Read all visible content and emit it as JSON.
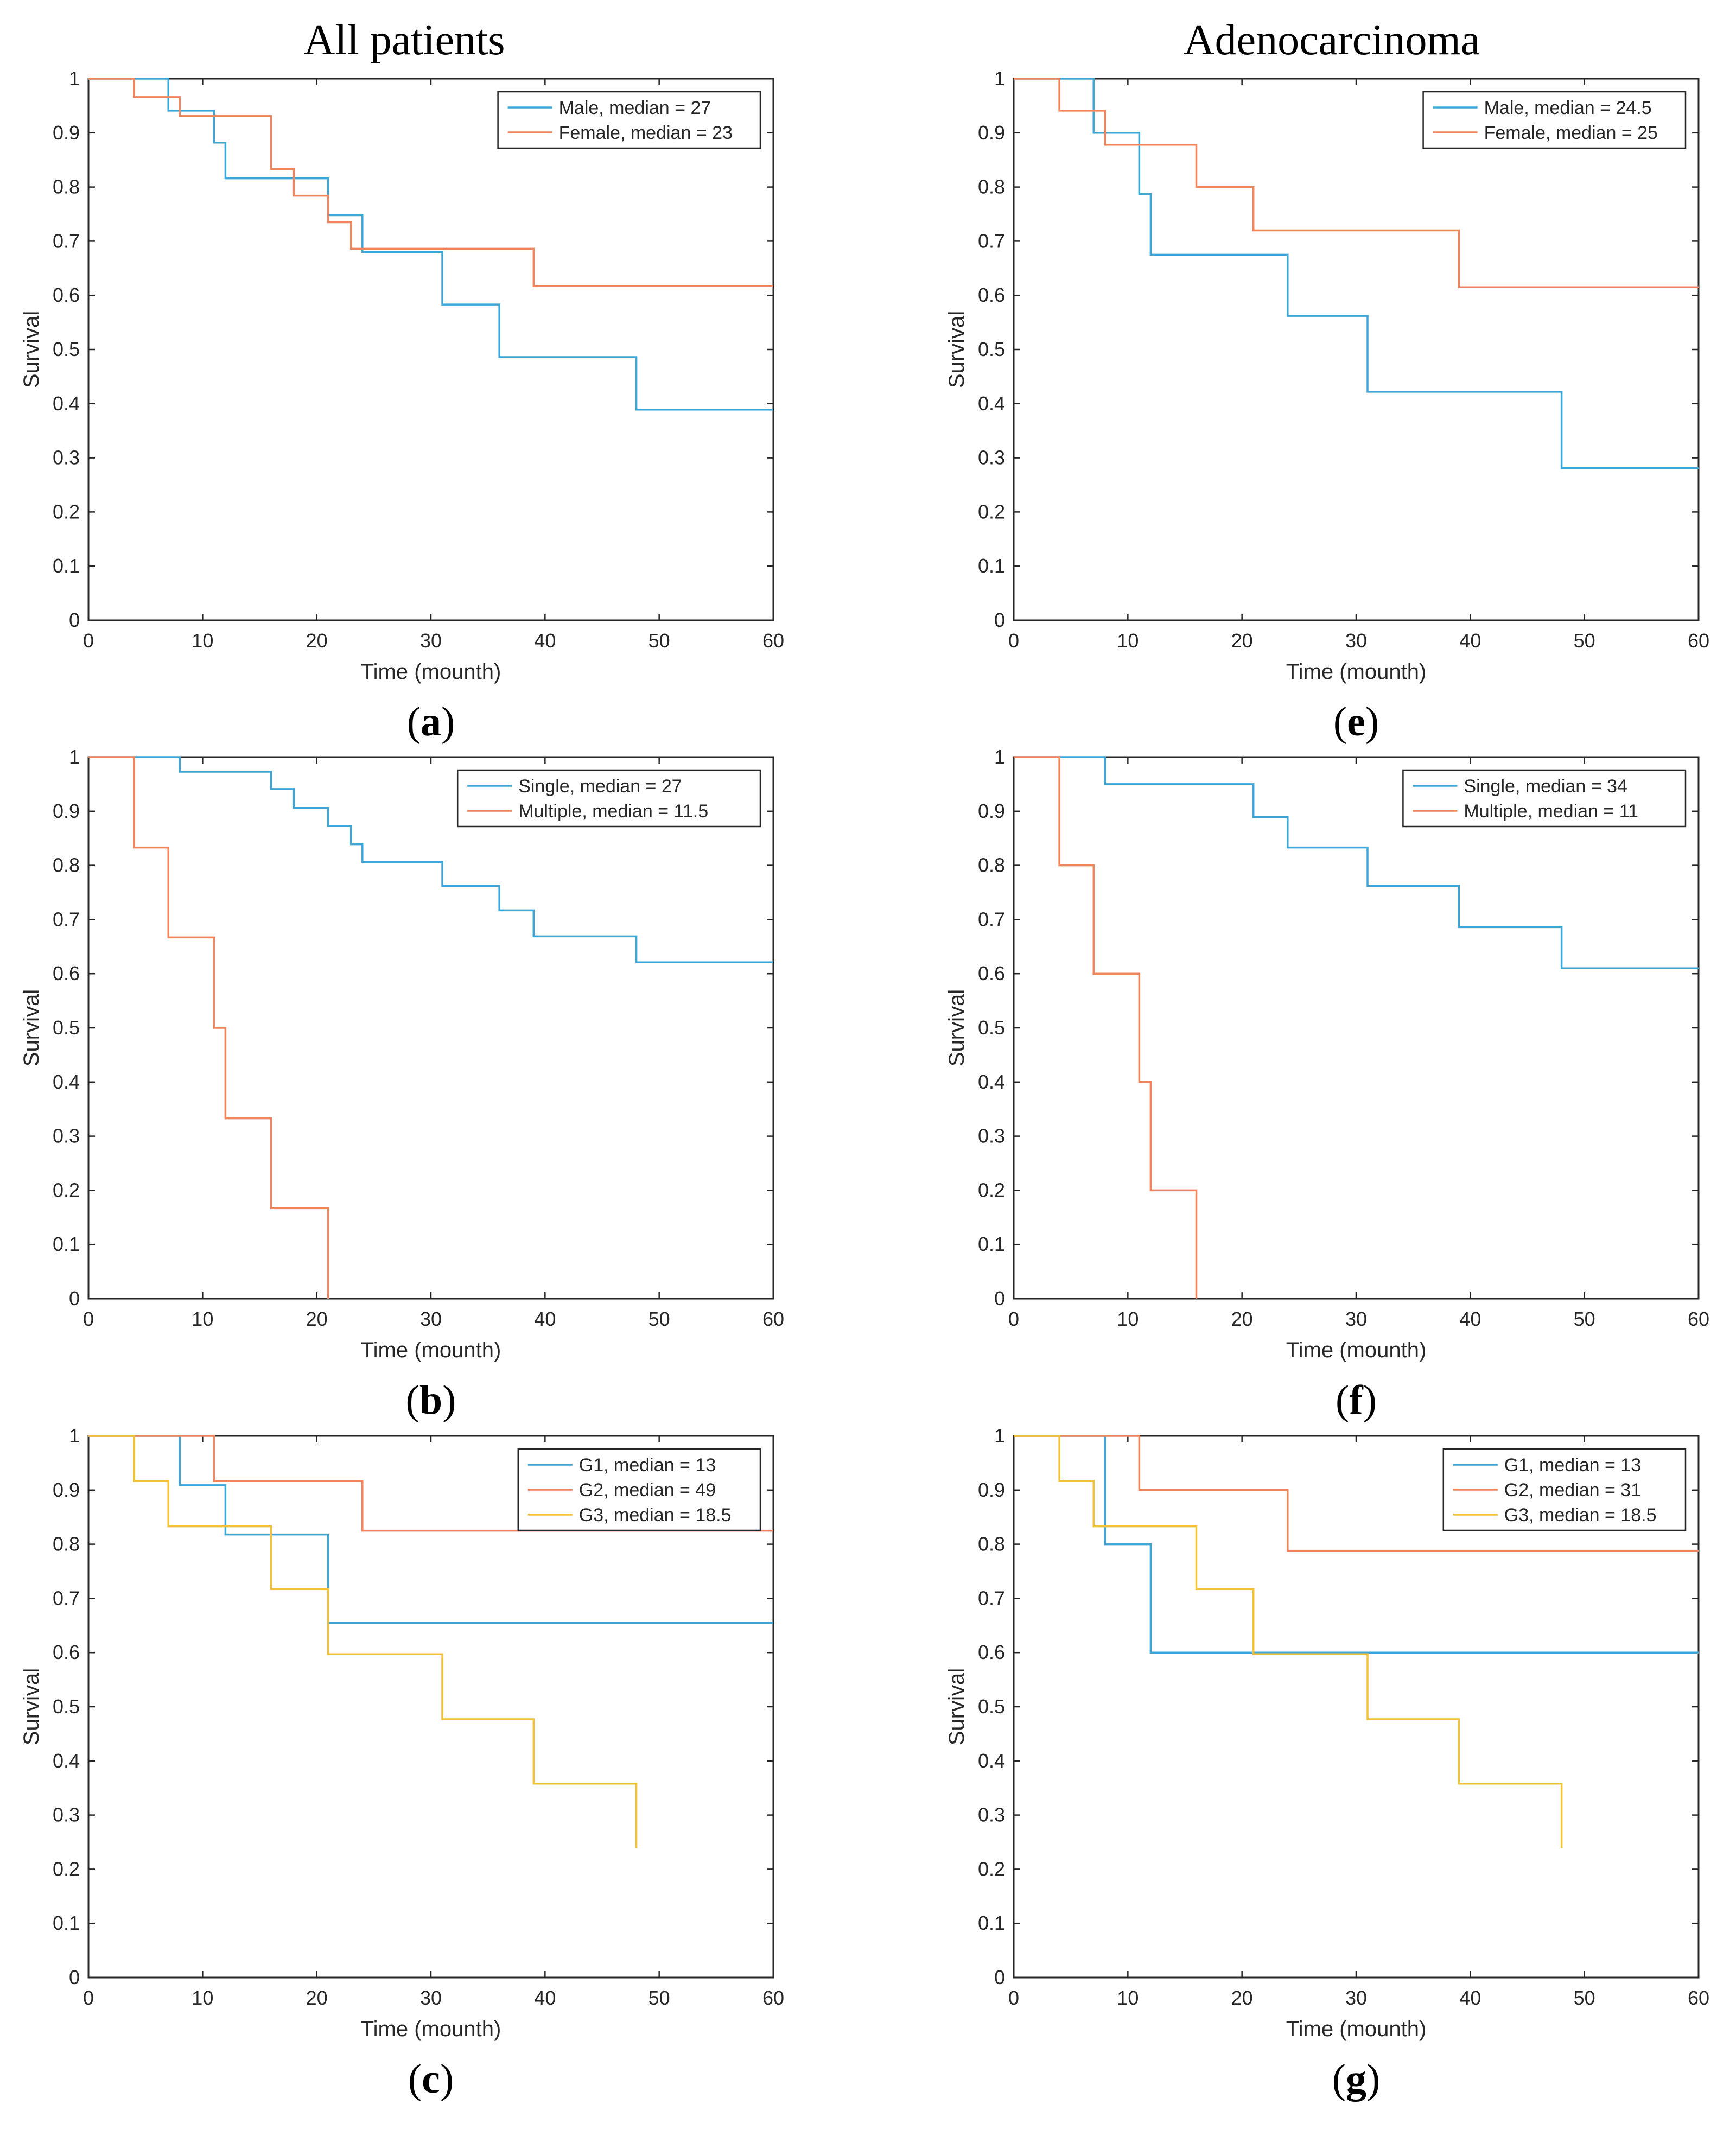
{
  "columns": {
    "left_title": "All patients",
    "right_title": "Adenocarcinoma"
  },
  "colors": {
    "blue": "#3ea6d6",
    "orange": "#f0845c",
    "yellow": "#f2c13a"
  },
  "chart_data": [
    {
      "id": "a",
      "type": "line",
      "step": true,
      "label": "a",
      "xlabel": "Time (mounth)",
      "ylabel": "Survival",
      "xlim": [
        0,
        60
      ],
      "ylim": [
        0,
        1
      ],
      "xticks": [
        "0",
        "10",
        "20",
        "30",
        "40",
        "50",
        "60"
      ],
      "yticks": [
        "0",
        "0.1",
        "0.2",
        "0.3",
        "0.4",
        "0.5",
        "0.6",
        "0.7",
        "0.8",
        "0.9",
        "1"
      ],
      "legend_position": "top-right",
      "series": [
        {
          "name": "Male, median = 27",
          "color": "blue",
          "x": [
            7,
            11,
            12,
            21,
            24,
            31,
            36,
            48,
            60
          ],
          "y": [
            0.941,
            0.882,
            0.816,
            0.748,
            0.68,
            0.583,
            0.486,
            0.389,
            0.389
          ]
        },
        {
          "name": "Female, median = 23",
          "color": "orange",
          "x": [
            4,
            8,
            16,
            18,
            21,
            23,
            39,
            60
          ],
          "y": [
            0.966,
            0.931,
            0.833,
            0.784,
            0.735,
            0.686,
            0.617,
            0.617
          ]
        }
      ]
    },
    {
      "id": "e",
      "type": "line",
      "step": true,
      "label": "e",
      "xlabel": "Time (mounth)",
      "ylabel": "Survival",
      "xlim": [
        0,
        60
      ],
      "ylim": [
        0,
        1
      ],
      "xticks": [
        "0",
        "10",
        "20",
        "30",
        "40",
        "50",
        "60"
      ],
      "yticks": [
        "0",
        "0.1",
        "0.2",
        "0.3",
        "0.4",
        "0.5",
        "0.6",
        "0.7",
        "0.8",
        "0.9",
        "1"
      ],
      "legend_position": "top-right",
      "series": [
        {
          "name": "Male, median = 24.5",
          "color": "blue",
          "x": [
            7,
            11,
            12,
            24,
            31,
            48,
            60
          ],
          "y": [
            0.9,
            0.787,
            0.675,
            0.562,
            0.422,
            0.281,
            0.281
          ]
        },
        {
          "name": "Female, median = 25",
          "color": "orange",
          "x": [
            4,
            8,
            16,
            21,
            39,
            60
          ],
          "y": [
            0.941,
            0.878,
            0.8,
            0.72,
            0.615,
            0.615
          ]
        }
      ]
    },
    {
      "id": "b",
      "type": "line",
      "step": true,
      "label": "b",
      "xlabel": "Time (mounth)",
      "ylabel": "Survival",
      "xlim": [
        0,
        60
      ],
      "ylim": [
        0,
        1
      ],
      "xticks": [
        "0",
        "10",
        "20",
        "30",
        "40",
        "50",
        "60"
      ],
      "yticks": [
        "0",
        "0.1",
        "0.2",
        "0.3",
        "0.4",
        "0.5",
        "0.6",
        "0.7",
        "0.8",
        "0.9",
        "1"
      ],
      "legend_position": "top-right",
      "series": [
        {
          "name": "Single, median = 27",
          "color": "blue",
          "x": [
            8,
            16,
            18,
            21,
            23,
            24,
            31,
            36,
            39,
            48,
            60
          ],
          "y": [
            0.973,
            0.941,
            0.906,
            0.873,
            0.839,
            0.806,
            0.762,
            0.717,
            0.669,
            0.621,
            0.621
          ]
        },
        {
          "name": "Multiple, median = 11.5",
          "color": "orange",
          "x": [
            4,
            7,
            11,
            12,
            16,
            21
          ],
          "y": [
            0.833,
            0.667,
            0.5,
            0.333,
            0.167,
            0
          ]
        }
      ]
    },
    {
      "id": "f",
      "type": "line",
      "step": true,
      "label": "f",
      "xlabel": "Time (mounth)",
      "ylabel": "Survival",
      "xlim": [
        0,
        60
      ],
      "ylim": [
        0,
        1
      ],
      "xticks": [
        "0",
        "10",
        "20",
        "30",
        "40",
        "50",
        "60"
      ],
      "yticks": [
        "0",
        "0.1",
        "0.2",
        "0.3",
        "0.4",
        "0.5",
        "0.6",
        "0.7",
        "0.8",
        "0.9",
        "1"
      ],
      "legend_position": "top-right",
      "series": [
        {
          "name": "Single, median = 34",
          "color": "blue",
          "x": [
            8,
            21,
            24,
            31,
            39,
            48,
            60
          ],
          "y": [
            0.95,
            0.889,
            0.833,
            0.762,
            0.686,
            0.61,
            0.61
          ]
        },
        {
          "name": "Multiple, median = 11",
          "color": "orange",
          "x": [
            4,
            7,
            11,
            12,
            16
          ],
          "y": [
            0.8,
            0.6,
            0.4,
            0.2,
            0
          ]
        }
      ]
    },
    {
      "id": "c",
      "type": "line",
      "step": true,
      "label": "c",
      "xlabel": "Time (mounth)",
      "ylabel": "Survival",
      "xlim": [
        0,
        60
      ],
      "ylim": [
        0,
        1
      ],
      "xticks": [
        "0",
        "10",
        "20",
        "30",
        "40",
        "50",
        "60"
      ],
      "yticks": [
        "0",
        "0.1",
        "0.2",
        "0.3",
        "0.4",
        "0.5",
        "0.6",
        "0.7",
        "0.8",
        "0.9",
        "1"
      ],
      "legend_position": "top-right",
      "series": [
        {
          "name": "G1, median = 13",
          "color": "blue",
          "x": [
            8,
            12,
            21,
            60
          ],
          "y": [
            0.909,
            0.818,
            0.655,
            0.655
          ]
        },
        {
          "name": "G2, median = 49",
          "color": "orange",
          "x": [
            11,
            24,
            60
          ],
          "y": [
            0.917,
            0.825,
            0.825
          ]
        },
        {
          "name": "G3, median = 18.5",
          "color": "yellow",
          "x": [
            4,
            7,
            16,
            21,
            31,
            39,
            48
          ],
          "y": [
            0.917,
            0.833,
            0.717,
            0.597,
            0.477,
            0.358,
            0.239
          ]
        }
      ]
    },
    {
      "id": "g",
      "type": "line",
      "step": true,
      "label": "g",
      "xlabel": "Time (mounth)",
      "ylabel": "Survival",
      "xlim": [
        0,
        60
      ],
      "ylim": [
        0,
        1
      ],
      "xticks": [
        "0",
        "10",
        "20",
        "30",
        "40",
        "50",
        "60"
      ],
      "yticks": [
        "0",
        "0.1",
        "0.2",
        "0.3",
        "0.4",
        "0.5",
        "0.6",
        "0.7",
        "0.8",
        "0.9",
        "1"
      ],
      "legend_position": "top-right",
      "series": [
        {
          "name": "G1, median = 13",
          "color": "blue",
          "x": [
            8,
            12,
            60
          ],
          "y": [
            0.8,
            0.6,
            0.6
          ]
        },
        {
          "name": "G2, median = 31",
          "color": "orange",
          "x": [
            11,
            24,
            60
          ],
          "y": [
            0.9,
            0.788,
            0.788
          ]
        },
        {
          "name": "G3, median = 18.5",
          "color": "yellow",
          "x": [
            4,
            7,
            16,
            21,
            31,
            39,
            48
          ],
          "y": [
            0.917,
            0.833,
            0.717,
            0.597,
            0.477,
            0.358,
            0.239
          ]
        }
      ]
    }
  ]
}
